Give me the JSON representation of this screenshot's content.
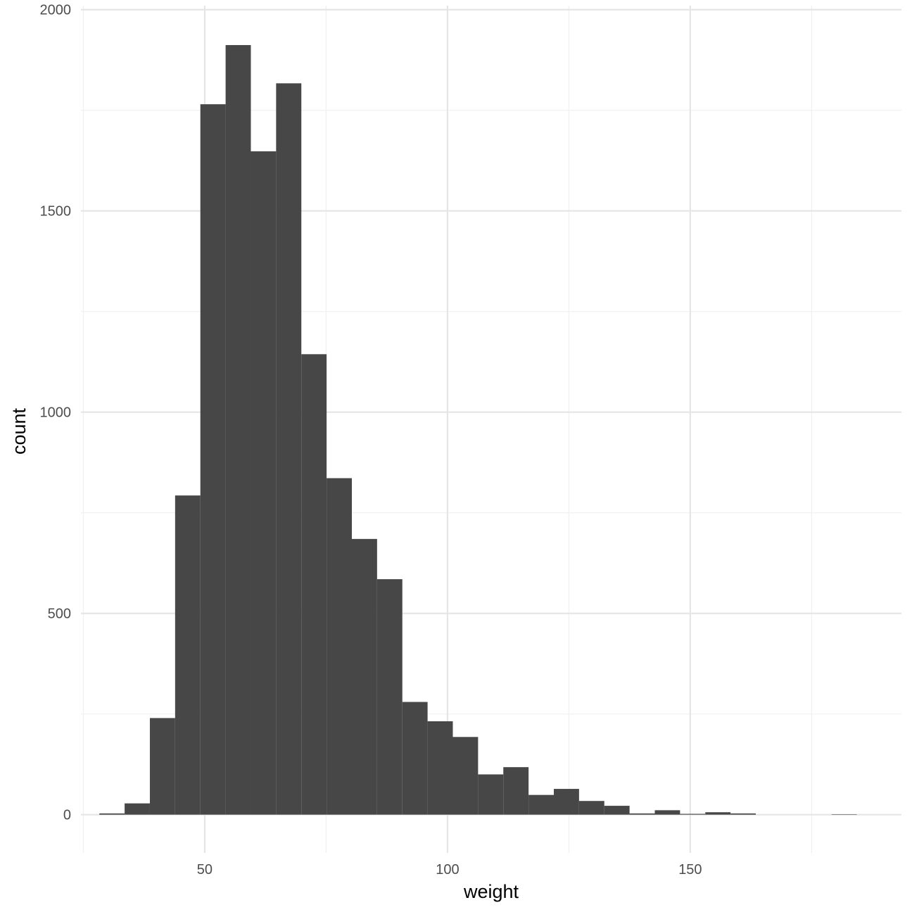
{
  "chart_data": {
    "type": "bar",
    "subtype": "histogram",
    "title": "",
    "xlabel": "weight",
    "ylabel": "count",
    "xlim": [
      24.5,
      193.5
    ],
    "ylim": [
      -95,
      2010
    ],
    "x_ticks": [
      50,
      100,
      150
    ],
    "x_minor_ticks": [
      25,
      75,
      125,
      175
    ],
    "y_ticks": [
      0,
      500,
      1000,
      1500,
      2000
    ],
    "y_minor_ticks": [
      250,
      750,
      1250,
      1750
    ],
    "grid": true,
    "legend": "none",
    "bin_width": 5.2,
    "bins": [
      {
        "x0": 28.3,
        "x1": 33.5,
        "count": 3
      },
      {
        "x0": 33.5,
        "x1": 38.7,
        "count": 28
      },
      {
        "x0": 38.7,
        "x1": 43.9,
        "count": 240
      },
      {
        "x0": 43.9,
        "x1": 49.1,
        "count": 793
      },
      {
        "x0": 49.1,
        "x1": 54.3,
        "count": 1765
      },
      {
        "x0": 54.3,
        "x1": 59.5,
        "count": 1912
      },
      {
        "x0": 59.5,
        "x1": 64.7,
        "count": 1648
      },
      {
        "x0": 64.7,
        "x1": 69.9,
        "count": 1817
      },
      {
        "x0": 69.9,
        "x1": 75.1,
        "count": 1144
      },
      {
        "x0": 75.1,
        "x1": 80.3,
        "count": 836
      },
      {
        "x0": 80.3,
        "x1": 85.5,
        "count": 685
      },
      {
        "x0": 85.5,
        "x1": 90.7,
        "count": 585
      },
      {
        "x0": 90.7,
        "x1": 95.9,
        "count": 280
      },
      {
        "x0": 95.9,
        "x1": 101.1,
        "count": 232
      },
      {
        "x0": 101.1,
        "x1": 106.3,
        "count": 193
      },
      {
        "x0": 106.3,
        "x1": 111.5,
        "count": 100
      },
      {
        "x0": 111.5,
        "x1": 116.7,
        "count": 118
      },
      {
        "x0": 116.7,
        "x1": 121.9,
        "count": 49
      },
      {
        "x0": 121.9,
        "x1": 127.1,
        "count": 64
      },
      {
        "x0": 127.1,
        "x1": 132.3,
        "count": 34
      },
      {
        "x0": 132.3,
        "x1": 137.5,
        "count": 22
      },
      {
        "x0": 137.5,
        "x1": 142.7,
        "count": 3
      },
      {
        "x0": 142.7,
        "x1": 147.9,
        "count": 11
      },
      {
        "x0": 147.9,
        "x1": 153.1,
        "count": 2
      },
      {
        "x0": 153.1,
        "x1": 158.3,
        "count": 6
      },
      {
        "x0": 158.3,
        "x1": 163.5,
        "count": 3
      },
      {
        "x0": 163.5,
        "x1": 168.7,
        "count": 0
      },
      {
        "x0": 168.7,
        "x1": 173.9,
        "count": 0
      },
      {
        "x0": 173.9,
        "x1": 179.1,
        "count": 0
      },
      {
        "x0": 179.1,
        "x1": 184.3,
        "count": 1
      }
    ],
    "colors": {
      "bar": "#474747",
      "grid_major": "#e5e5e5",
      "grid_minor": "#f0f0f0",
      "tick_label": "#4d4d4d",
      "axis_title": "#000000",
      "background": "#ffffff"
    }
  }
}
